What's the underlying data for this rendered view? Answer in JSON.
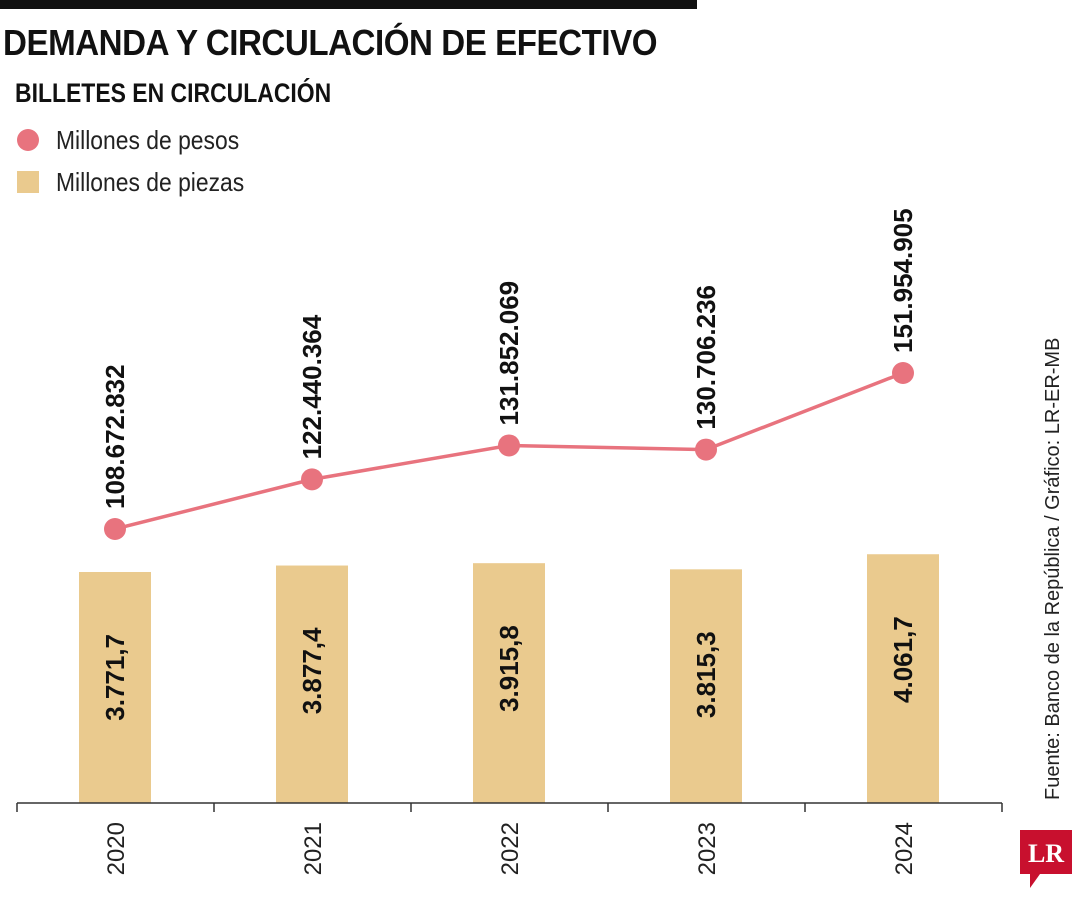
{
  "title": "DEMANDA Y CIRCULACIÓN DE EFECTIVO",
  "subtitle": "BILLETES EN CIRCULACIÓN",
  "legend": {
    "pesos": "Millones de pesos",
    "piezas": "Millones de piezas"
  },
  "colors": {
    "line": "#E8737E",
    "bar": "#EACA8E",
    "text": "#111111"
  },
  "source": "Fuente: Banco de la República / Gráfico: LR-ER-MB",
  "logo": "LR",
  "chart_data": {
    "type": "bar+line",
    "categories": [
      "2020",
      "2021",
      "2022",
      "2023",
      "2024"
    ],
    "series": [
      {
        "name": "Millones de pesos",
        "type": "line",
        "values": [
          108672832,
          122440364,
          131852069,
          130706236,
          151954905
        ],
        "labels": [
          "108.672.832",
          "122.440.364",
          "131.852.069",
          "130.706.236",
          "151.954.905"
        ]
      },
      {
        "name": "Millones de piezas",
        "type": "bar",
        "values": [
          3771.7,
          3877.4,
          3915.8,
          3815.3,
          4061.7
        ],
        "labels": [
          "3.771,7",
          "3.877,4",
          "3.915,8",
          "3.815,3",
          "4.061,7"
        ]
      }
    ]
  }
}
